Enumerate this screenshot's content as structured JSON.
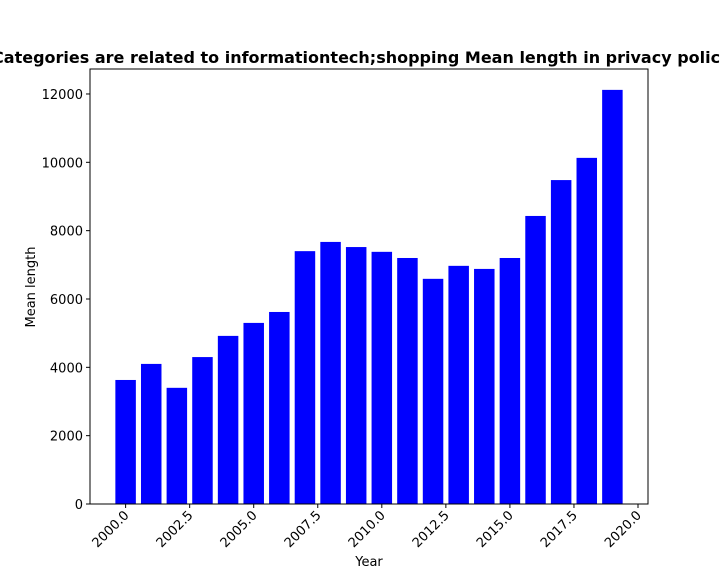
{
  "chart_data": {
    "type": "bar",
    "title": "Categories are related to informationtech;shopping Mean length in privacy policies",
    "xlabel": "Year",
    "ylabel": "Mean length",
    "x": [
      2000,
      2001,
      2002,
      2003,
      2004,
      2005,
      2006,
      2007,
      2008,
      2009,
      2010,
      2011,
      2012,
      2013,
      2014,
      2015,
      2016,
      2017,
      2018,
      2019
    ],
    "values": [
      3630,
      4100,
      3400,
      4300,
      4920,
      5300,
      5620,
      7400,
      7670,
      7520,
      7380,
      7200,
      6590,
      6970,
      6880,
      7200,
      8430,
      9480,
      10130,
      12120
    ],
    "color": "#0000ff",
    "bar_width": 0.8,
    "xlim": [
      1998.61,
      2020.39
    ],
    "xticks": [
      {
        "value": 2000,
        "label": "2000.0"
      },
      {
        "value": 2002.5,
        "label": "2002.5"
      },
      {
        "value": 2005,
        "label": "2005.0"
      },
      {
        "value": 2007.5,
        "label": "2007.5"
      },
      {
        "value": 2010,
        "label": "2010.0"
      },
      {
        "value": 2012.5,
        "label": "2012.5"
      },
      {
        "value": 2015,
        "label": "2015.0"
      },
      {
        "value": 2017.5,
        "label": "2017.5"
      },
      {
        "value": 2020,
        "label": "2020.0"
      }
    ],
    "ylim": [
      0,
      12731
    ],
    "yticks": [
      0,
      2000,
      4000,
      6000,
      8000,
      10000,
      12000
    ],
    "grid": false
  }
}
